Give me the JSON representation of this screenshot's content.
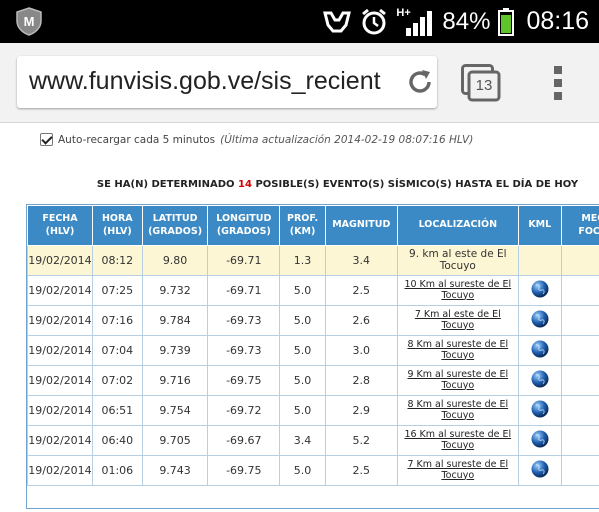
{
  "statusbar": {
    "network_label": "H+",
    "battery_pct": "84%",
    "time": "08:16"
  },
  "browser": {
    "url": "www.funvisis.gob.ve/sis_recient",
    "tab_count": "13"
  },
  "page": {
    "autoreload_label": "Auto-recargar cada 5 minutos",
    "last_update": "(Última actualización 2014-02-19 08:07:16 HLV)",
    "headline_pre": "SE HA(N) DETERMINADO",
    "headline_count": "14",
    "headline_post": "POSIBLE(S) EVENTO(S) SÍSMICO(S) HASTA EL DÍA DE HOY"
  },
  "table": {
    "headers": [
      {
        "l1": "FECHA",
        "l2": "(HLV)"
      },
      {
        "l1": "HORA",
        "l2": "(HLV)"
      },
      {
        "l1": "LATITUD",
        "l2": "(GRADOS)"
      },
      {
        "l1": "LONGITUD",
        "l2": "(GRADOS)"
      },
      {
        "l1": "PROF.",
        "l2": "(KM)"
      },
      {
        "l1": "MAGNITUD",
        "l2": ""
      },
      {
        "l1": "LOCALIZACIÓN",
        "l2": ""
      },
      {
        "l1": "KML",
        "l2": ""
      },
      {
        "l1": "MEC",
        "l2": "FOCA"
      }
    ],
    "rows": [
      {
        "fecha": "19/02/2014",
        "hora": "08:12",
        "lat": "9.80",
        "lon": "-69.71",
        "prof": "1.3",
        "mag": "3.4",
        "loc": "9. km al este de El Tocuyo",
        "link": false,
        "kml": false
      },
      {
        "fecha": "19/02/2014",
        "hora": "07:25",
        "lat": "9.732",
        "lon": "-69.71",
        "prof": "5.0",
        "mag": "2.5",
        "loc": "10 Km al sureste de El Tocuyo",
        "link": true,
        "kml": true
      },
      {
        "fecha": "19/02/2014",
        "hora": "07:16",
        "lat": "9.784",
        "lon": "-69.73",
        "prof": "5.0",
        "mag": "2.6",
        "loc": "7 Km al este de El Tocuyo",
        "link": true,
        "kml": true
      },
      {
        "fecha": "19/02/2014",
        "hora": "07:04",
        "lat": "9.739",
        "lon": "-69.73",
        "prof": "5.0",
        "mag": "3.0",
        "loc": "8 Km al sureste de El Tocuyo",
        "link": true,
        "kml": true
      },
      {
        "fecha": "19/02/2014",
        "hora": "07:02",
        "lat": "9.716",
        "lon": "-69.75",
        "prof": "5.0",
        "mag": "2.8",
        "loc": "9 Km al sureste de El Tocuyo",
        "link": true,
        "kml": true
      },
      {
        "fecha": "19/02/2014",
        "hora": "06:51",
        "lat": "9.754",
        "lon": "-69.72",
        "prof": "5.0",
        "mag": "2.9",
        "loc": "8 Km al sureste de El Tocuyo",
        "link": true,
        "kml": true
      },
      {
        "fecha": "19/02/2014",
        "hora": "06:40",
        "lat": "9.705",
        "lon": "-69.67",
        "prof": "3.4",
        "mag": "5.2",
        "loc": "16 Km al sureste de El Tocuyo",
        "link": true,
        "kml": true
      },
      {
        "fecha": "19/02/2014",
        "hora": "01:06",
        "lat": "9.743",
        "lon": "-69.75",
        "prof": "5.0",
        "mag": "2.5",
        "loc": "7 Km al sureste de El Tocuyo",
        "link": true,
        "kml": true
      }
    ]
  },
  "colors": {
    "header_bg": "#3c8ac5",
    "highlight_row": "#fdf6d4",
    "count_red": "#d40000"
  }
}
